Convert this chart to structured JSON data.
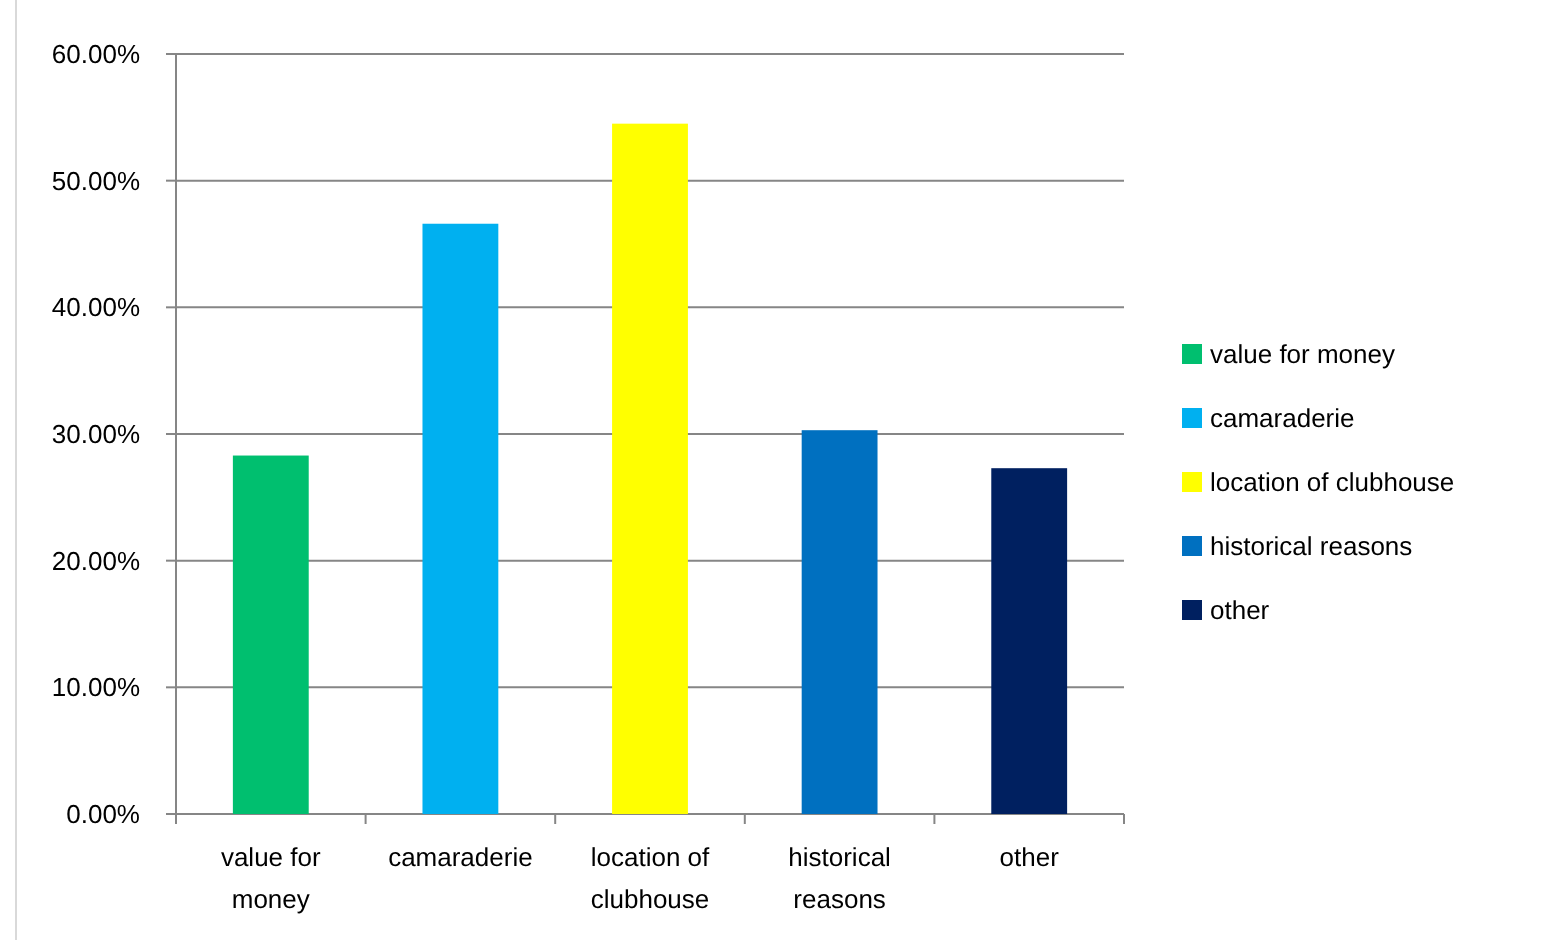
{
  "chart_data": {
    "type": "bar",
    "categories": [
      "value for money",
      "camaraderie",
      "location of clubhouse",
      "historical reasons",
      "other"
    ],
    "series": [
      {
        "name": "value for money",
        "color": "#00bf6f",
        "values": [
          28.3,
          null,
          null,
          null,
          null
        ]
      },
      {
        "name": "camaraderie",
        "color": "#00b0f0",
        "values": [
          null,
          46.6,
          null,
          null,
          null
        ]
      },
      {
        "name": "location of clubhouse",
        "color": "#ffff00",
        "values": [
          null,
          null,
          54.5,
          null,
          null
        ]
      },
      {
        "name": "historical reasons",
        "color": "#0070c0",
        "values": [
          null,
          null,
          null,
          30.3,
          null
        ]
      },
      {
        "name": "other",
        "color": "#002060",
        "values": [
          null,
          null,
          null,
          null,
          27.3
        ]
      }
    ],
    "ylim": [
      0,
      60
    ],
    "yticks": [
      {
        "value": 0,
        "label": "0.00%"
      },
      {
        "value": 10,
        "label": "10.00%"
      },
      {
        "value": 20,
        "label": "20.00%"
      },
      {
        "value": 30,
        "label": "30.00%"
      },
      {
        "value": 40,
        "label": "40.00%"
      },
      {
        "value": 50,
        "label": "50.00%"
      },
      {
        "value": 60,
        "label": "60.00%"
      }
    ],
    "grid": "y",
    "legend": "right"
  }
}
